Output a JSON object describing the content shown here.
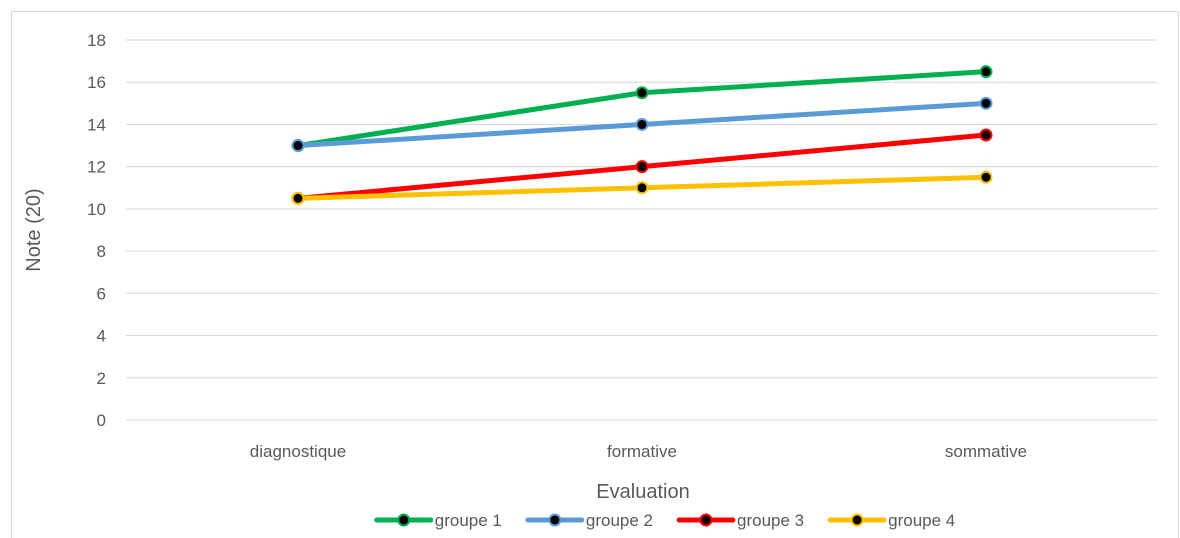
{
  "chart_data": {
    "type": "line",
    "title": "",
    "xlabel": "Evaluation",
    "ylabel": "Note (20)",
    "categories": [
      "diagnostique",
      "formative",
      "sommative"
    ],
    "ylim": [
      0,
      18
    ],
    "yticks": [
      0,
      2,
      4,
      6,
      8,
      10,
      12,
      14,
      16,
      18
    ],
    "grid": true,
    "legend_position": "bottom",
    "marker_color": "#000000",
    "series": [
      {
        "name": "groupe 1",
        "color": "#00b050",
        "values": [
          13,
          15.5,
          16.5
        ]
      },
      {
        "name": "groupe 2",
        "color": "#5b9bd5",
        "values": [
          13,
          14,
          15
        ]
      },
      {
        "name": "groupe 3",
        "color": "#ff0000",
        "values": [
          10.5,
          12,
          13.5
        ]
      },
      {
        "name": "groupe 4",
        "color": "#ffc000",
        "values": [
          10.5,
          11,
          11.5
        ]
      }
    ]
  }
}
